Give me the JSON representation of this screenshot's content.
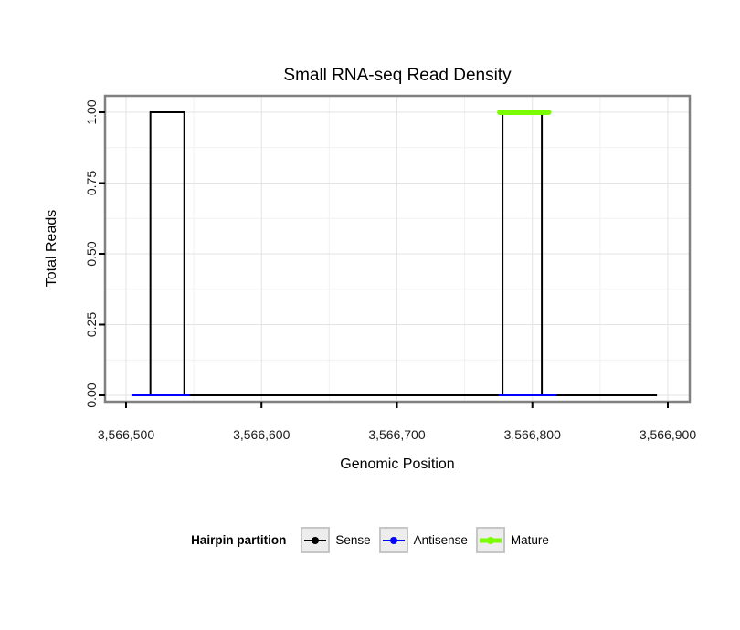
{
  "chart_data": {
    "type": "line",
    "title": "Small RNA-seq Read Density",
    "xlabel": "Genomic Position",
    "ylabel": "Total Reads",
    "xlim": [
      3566500,
      3566900
    ],
    "ylim": [
      0,
      1
    ],
    "x_ticks": [
      {
        "value": 3566500,
        "label": "3,566,500"
      },
      {
        "value": 3566600,
        "label": "3,566,600"
      },
      {
        "value": 3566700,
        "label": "3,566,700"
      },
      {
        "value": 3566800,
        "label": "3,566,800"
      },
      {
        "value": 3566900,
        "label": "3,566,900"
      }
    ],
    "y_ticks": [
      {
        "value": 0,
        "label": "0.00"
      },
      {
        "value": 0.25,
        "label": "0.25"
      },
      {
        "value": 0.5,
        "label": "0.50"
      },
      {
        "value": 0.75,
        "label": "0.75"
      },
      {
        "value": 1,
        "label": "1.00"
      }
    ],
    "grid": {
      "major_color": "#e3e3e3",
      "minor_color": "#f1f1f1",
      "x_minor": [
        3566550,
        3566650,
        3566750,
        3566850
      ],
      "y_minor": [
        0.125,
        0.375,
        0.625,
        0.875
      ]
    },
    "series": [
      {
        "name": "Sense",
        "color": "#000000",
        "type": "step-line",
        "stroke_width": 2,
        "points": [
          [
            3566505,
            0
          ],
          [
            3566518,
            0
          ],
          [
            3566518,
            1
          ],
          [
            3566543,
            1
          ],
          [
            3566543,
            0
          ],
          [
            3566778,
            0
          ],
          [
            3566778,
            1
          ],
          [
            3566807,
            1
          ],
          [
            3566807,
            0
          ],
          [
            3566892,
            0
          ]
        ]
      },
      {
        "name": "Antisense",
        "color": "#0000ff",
        "type": "segments",
        "stroke_width": 2,
        "y": 0,
        "segments": [
          [
            3566504,
            3566547
          ],
          [
            3566775,
            3566818
          ]
        ]
      },
      {
        "name": "Mature",
        "color": "#7cfc00",
        "type": "segments",
        "stroke_width": 6,
        "y": 1,
        "segments": [
          [
            3566776,
            3566812
          ]
        ]
      }
    ],
    "legend": {
      "title": "Hairpin partition",
      "position": "bottom",
      "entries": [
        {
          "label": "Sense",
          "color": "#000000",
          "key_line_width": 2
        },
        {
          "label": "Antisense",
          "color": "#0000ff",
          "key_line_width": 2
        },
        {
          "label": "Mature",
          "color": "#7cfc00",
          "key_line_width": 5
        }
      ]
    }
  }
}
